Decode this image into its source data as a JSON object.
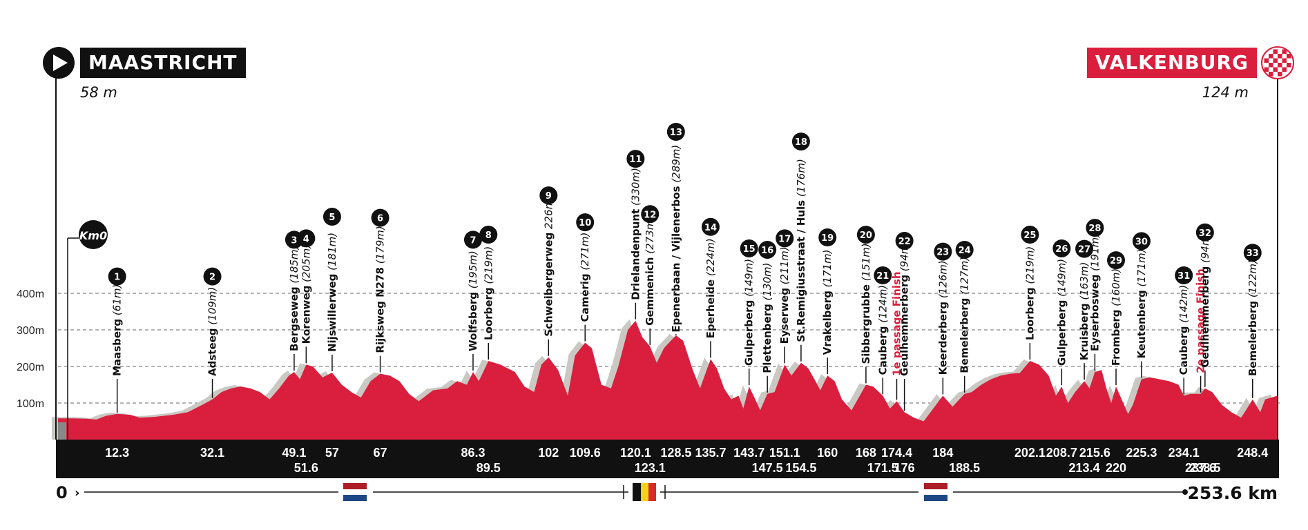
{
  "start": {
    "name": "MAASTRICHT",
    "altitude": "58 m"
  },
  "finish": {
    "name": "VALKENBURG",
    "altitude": "124 m"
  },
  "km0_label": "Km0",
  "total_label": "253.6 km",
  "zero_label": "0",
  "colors": {
    "profile": "#d91f3d",
    "shadow": "#c9c8c2",
    "band": "#111111",
    "accent": "#d91f3d"
  },
  "chart_data": {
    "type": "area",
    "title": "",
    "xlabel": "",
    "ylabel": "",
    "xlim": [
      0,
      253.6
    ],
    "ylim": [
      0,
      400
    ],
    "y_ticks": [
      {
        "value": 100,
        "label": "100m"
      },
      {
        "value": 200,
        "label": "200m"
      },
      {
        "value": 300,
        "label": "300m"
      },
      {
        "value": 400,
        "label": "400m"
      }
    ],
    "grid": "dashed horizontal",
    "km_ticks": [
      12.3,
      32.1,
      49.1,
      51.6,
      57,
      67,
      86.3,
      89.5,
      102,
      109.6,
      120.1,
      123.1,
      128.5,
      135.7,
      143.7,
      147.5,
      151.1,
      154.5,
      160,
      168,
      171.5,
      174.4,
      176,
      184,
      188.5,
      202.1,
      208.7,
      213.4,
      215.6,
      220,
      225.3,
      234.1,
      237.6,
      238.5,
      248.4
    ],
    "climbs": [
      {
        "n": "1",
        "name": "Maasberg",
        "alt": "(61m)",
        "km": 12.3
      },
      {
        "n": "2",
        "name": "Adsteeg",
        "alt": "(109m)",
        "km": 32.1
      },
      {
        "n": "3",
        "name": "Bergseweg",
        "alt": "(185m)",
        "km": 49.1
      },
      {
        "n": "4",
        "name": "Korenweg",
        "alt": "(205m)",
        "km": 51.6
      },
      {
        "n": "5",
        "name": "Nijswillerweg",
        "alt": "(181m)",
        "km": 57
      },
      {
        "n": "6",
        "name": "Rijksweg N278",
        "alt": "(179m)",
        "km": 67
      },
      {
        "n": "7",
        "name": "Wolfsberg",
        "alt": "(195m)",
        "km": 86.3
      },
      {
        "n": "8",
        "name": "Loorberg",
        "alt": "(219m)",
        "km": 89.5
      },
      {
        "n": "9",
        "name": "Schweibergerweg",
        "alt": "226m)",
        "km": 102
      },
      {
        "n": "10",
        "name": "Camerig",
        "alt": "(271m)",
        "km": 109.6
      },
      {
        "n": "11",
        "name": "Drielandenpunt",
        "alt": "(330m)",
        "km": 120.1
      },
      {
        "n": "12",
        "name": "Gemmenich",
        "alt": "(273m)",
        "km": 123.1
      },
      {
        "n": "13",
        "name": "Epenerbaan / Vijlenerbos",
        "alt": "(289m)",
        "km": 128.5
      },
      {
        "n": "14",
        "name": "Eperheide",
        "alt": "(224m)",
        "km": 135.7
      },
      {
        "n": "15",
        "name": "Gulperberg",
        "alt": "(149m)",
        "km": 143.7
      },
      {
        "n": "16",
        "name": "Plettenberg",
        "alt": "(130m)",
        "km": 147.5
      },
      {
        "n": "17",
        "name": "Eyserweg",
        "alt": "(211m)",
        "km": 151.1
      },
      {
        "n": "18",
        "name": "St.Remigiusstraat / Huls",
        "alt": "(176m)",
        "km": 154.5
      },
      {
        "n": "19",
        "name": "Vrakelberg",
        "alt": "(171m)",
        "km": 160
      },
      {
        "n": "20",
        "name": "Sibbergrubbe",
        "alt": "(151m)",
        "km": 168
      },
      {
        "n": "21",
        "name": "Cauberg",
        "alt": "(124m)",
        "km": 171.5
      },
      {
        "n": "",
        "name": "1e passage Finish",
        "alt": "",
        "km": 174.4,
        "red": true
      },
      {
        "n": "22",
        "name": "Geulhemmerberg",
        "alt": "(94m)",
        "km": 176
      },
      {
        "n": "23",
        "name": "Keerderberg",
        "alt": "(126m)",
        "km": 184
      },
      {
        "n": "24",
        "name": "Bemelerberg",
        "alt": "(127m)",
        "km": 188.5
      },
      {
        "n": "25",
        "name": "Loorberg",
        "alt": "(219m)",
        "km": 202.1
      },
      {
        "n": "26",
        "name": "Gulperberg",
        "alt": "(149m)",
        "km": 208.7
      },
      {
        "n": "27",
        "name": "Kruisberg",
        "alt": "(163m)",
        "km": 213.4
      },
      {
        "n": "28",
        "name": "Eyserbosweg",
        "alt": "(191m)",
        "km": 215.6
      },
      {
        "n": "29",
        "name": "Fromberg",
        "alt": "(160m)",
        "km": 220
      },
      {
        "n": "30",
        "name": "Keutenberg",
        "alt": "(171m)",
        "km": 225.3
      },
      {
        "n": "31",
        "name": "Cauberg",
        "alt": "(142m)",
        "km": 234.1
      },
      {
        "n": "",
        "name": "2e passage Finish",
        "alt": "",
        "km": 237.6,
        "red": true
      },
      {
        "n": "32",
        "name": "Geulhemmerberg",
        "alt": "(94m)",
        "km": 238.5
      },
      {
        "n": "33",
        "name": "Bemelerberg",
        "alt": "(122m)",
        "km": 248.4
      }
    ],
    "profile": [
      [
        0,
        58
      ],
      [
        3,
        58
      ],
      [
        6,
        57
      ],
      [
        8,
        55
      ],
      [
        10,
        65
      ],
      [
        12.3,
        70
      ],
      [
        15,
        68
      ],
      [
        17,
        60
      ],
      [
        20,
        62
      ],
      [
        24,
        68
      ],
      [
        27,
        75
      ],
      [
        30,
        95
      ],
      [
        32.1,
        110
      ],
      [
        34,
        130
      ],
      [
        36,
        140
      ],
      [
        38,
        145
      ],
      [
        40,
        140
      ],
      [
        42,
        130
      ],
      [
        44,
        110
      ],
      [
        46,
        140
      ],
      [
        48,
        175
      ],
      [
        49.1,
        185
      ],
      [
        50.3,
        165
      ],
      [
        51.6,
        205
      ],
      [
        53,
        200
      ],
      [
        55,
        170
      ],
      [
        57,
        183
      ],
      [
        59,
        150
      ],
      [
        61,
        130
      ],
      [
        63,
        115
      ],
      [
        65,
        160
      ],
      [
        67,
        180
      ],
      [
        69,
        175
      ],
      [
        71,
        160
      ],
      [
        73,
        125
      ],
      [
        75,
        105
      ],
      [
        78,
        135
      ],
      [
        81,
        140
      ],
      [
        83,
        160
      ],
      [
        85,
        150
      ],
      [
        86.3,
        185
      ],
      [
        87.5,
        160
      ],
      [
        89.5,
        215
      ],
      [
        92,
        205
      ],
      [
        95,
        185
      ],
      [
        97,
        145
      ],
      [
        99,
        130
      ],
      [
        100.5,
        205
      ],
      [
        102,
        225
      ],
      [
        104,
        190
      ],
      [
        106,
        120
      ],
      [
        107.5,
        230
      ],
      [
        109.6,
        265
      ],
      [
        111,
        250
      ],
      [
        113,
        150
      ],
      [
        115,
        140
      ],
      [
        116.5,
        200
      ],
      [
        118.5,
        300
      ],
      [
        120.1,
        325
      ],
      [
        121.5,
        280
      ],
      [
        123.1,
        255
      ],
      [
        124.5,
        210
      ],
      [
        126,
        250
      ],
      [
        128.5,
        285
      ],
      [
        130,
        270
      ],
      [
        132,
        190
      ],
      [
        133.5,
        140
      ],
      [
        135.7,
        220
      ],
      [
        137,
        195
      ],
      [
        138.5,
        140
      ],
      [
        140,
        110
      ],
      [
        141.5,
        120
      ],
      [
        142.5,
        85
      ],
      [
        143.7,
        145
      ],
      [
        145,
        110
      ],
      [
        146,
        80
      ],
      [
        147.5,
        125
      ],
      [
        149,
        130
      ],
      [
        151.1,
        205
      ],
      [
        152.5,
        175
      ],
      [
        154.5,
        210
      ],
      [
        156,
        195
      ],
      [
        157.5,
        160
      ],
      [
        158.5,
        135
      ],
      [
        160,
        175
      ],
      [
        161.5,
        160
      ],
      [
        163,
        110
      ],
      [
        165,
        80
      ],
      [
        166.5,
        115
      ],
      [
        168,
        150
      ],
      [
        169.5,
        145
      ],
      [
        171.5,
        120
      ],
      [
        173,
        85
      ],
      [
        174.4,
        105
      ],
      [
        176,
        75
      ],
      [
        178,
        60
      ],
      [
        180,
        50
      ],
      [
        182,
        85
      ],
      [
        184,
        120
      ],
      [
        186,
        90
      ],
      [
        188.5,
        125
      ],
      [
        190,
        130
      ],
      [
        192,
        150
      ],
      [
        194,
        165
      ],
      [
        196,
        175
      ],
      [
        198,
        180
      ],
      [
        200,
        182
      ],
      [
        202.1,
        215
      ],
      [
        204,
        205
      ],
      [
        206,
        175
      ],
      [
        207.5,
        120
      ],
      [
        208.7,
        145
      ],
      [
        210,
        100
      ],
      [
        211.5,
        130
      ],
      [
        213.4,
        160
      ],
      [
        214.5,
        140
      ],
      [
        215.6,
        185
      ],
      [
        217,
        190
      ],
      [
        218,
        140
      ],
      [
        219,
        100
      ],
      [
        220,
        145
      ],
      [
        221.5,
        100
      ],
      [
        222.5,
        70
      ],
      [
        223.5,
        95
      ],
      [
        225.3,
        165
      ],
      [
        227,
        170
      ],
      [
        229,
        165
      ],
      [
        231,
        160
      ],
      [
        233,
        150
      ],
      [
        234.1,
        120
      ],
      [
        235.5,
        125
      ],
      [
        237.6,
        125
      ],
      [
        238.5,
        140
      ],
      [
        240,
        130
      ],
      [
        242,
        95
      ],
      [
        244,
        75
      ],
      [
        246,
        60
      ],
      [
        247,
        80
      ],
      [
        248.4,
        110
      ],
      [
        250,
        75
      ],
      [
        251,
        110
      ],
      [
        253.6,
        120
      ]
    ]
  }
}
